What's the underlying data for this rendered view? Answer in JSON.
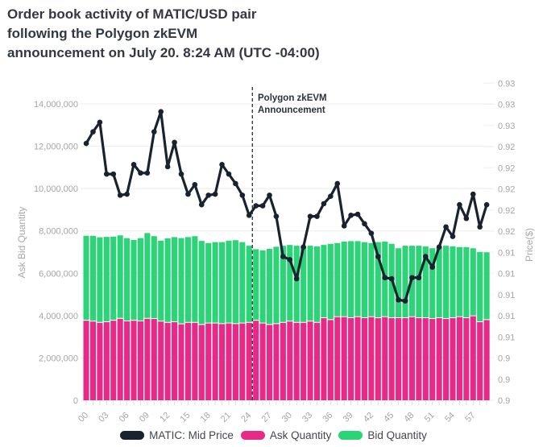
{
  "title": {
    "lines": [
      "Order book activity of MATIC/USD pair",
      "following the Polygon zkEVM",
      "announcement on July 20. 8:24 AM (UTC -04:00)"
    ]
  },
  "chart_data": {
    "type": "stacked-bar+line",
    "categories": [
      "00",
      "01",
      "02",
      "03",
      "04",
      "05",
      "06",
      "07",
      "08",
      "09",
      "10",
      "11",
      "12",
      "13",
      "14",
      "15",
      "16",
      "17",
      "18",
      "19",
      "20",
      "21",
      "22",
      "23",
      "24",
      "25",
      "26",
      "27",
      "28",
      "29",
      "30",
      "31",
      "32",
      "33",
      "34",
      "35",
      "36",
      "37",
      "38",
      "39",
      "40",
      "41",
      "42",
      "43",
      "44",
      "45",
      "46",
      "47",
      "48",
      "49",
      "50",
      "51",
      "52",
      "53",
      "54",
      "55",
      "56",
      "57",
      "58",
      "59"
    ],
    "x_tick_labels_every": 3,
    "x_tick_labels_shown": [
      "00",
      "03",
      "06",
      "09",
      "12",
      "15",
      "18",
      "21",
      "24",
      "27",
      "30",
      "33",
      "36",
      "39",
      "42",
      "45",
      "48",
      "51",
      "54",
      "57"
    ],
    "left_axis": {
      "title": "Ask Bid Quantity",
      "min": 0,
      "max": 14000000,
      "tick_step": 2000000
    },
    "right_axis": {
      "title": "Price($)",
      "min": 0.9,
      "max": 0.93,
      "tick_step": 0.002,
      "label_decimals": 2
    },
    "grid": true,
    "legend_position": "bottom",
    "series": [
      {
        "name": "Ask Quantity",
        "type": "bar",
        "stack": "orderbook",
        "axis": "left",
        "color": "#e72a88",
        "values_millions": [
          3.76,
          3.72,
          3.66,
          3.69,
          3.76,
          3.85,
          3.73,
          3.76,
          3.73,
          3.85,
          3.84,
          3.72,
          3.66,
          3.69,
          3.59,
          3.66,
          3.66,
          3.56,
          3.63,
          3.63,
          3.6,
          3.63,
          3.6,
          3.63,
          3.66,
          3.76,
          3.63,
          3.56,
          3.6,
          3.66,
          3.72,
          3.66,
          3.66,
          3.72,
          3.66,
          3.88,
          3.79,
          3.93,
          3.93,
          3.88,
          3.93,
          3.88,
          3.93,
          3.88,
          3.93,
          3.88,
          3.88,
          3.88,
          3.93,
          3.88,
          3.88,
          3.84,
          3.88,
          3.84,
          3.88,
          3.93,
          3.88,
          3.97,
          3.69,
          3.79
        ]
      },
      {
        "name": "Bid Quantity",
        "type": "bar",
        "stack": "orderbook",
        "axis": "left",
        "color": "#2bd476",
        "values_millions": [
          4.01,
          4.05,
          4.04,
          4.03,
          3.97,
          3.94,
          3.93,
          3.81,
          3.93,
          4.05,
          3.91,
          3.82,
          3.99,
          4.02,
          4.07,
          4.05,
          4.09,
          3.97,
          3.8,
          3.84,
          3.87,
          3.91,
          3.96,
          3.84,
          3.64,
          3.38,
          3.45,
          3.59,
          3.65,
          3.64,
          3.62,
          3.64,
          3.61,
          3.58,
          3.61,
          3.46,
          3.6,
          3.5,
          3.57,
          3.64,
          3.59,
          3.59,
          3.5,
          3.59,
          3.57,
          3.51,
          3.3,
          3.42,
          3.37,
          3.42,
          3.39,
          3.34,
          3.36,
          3.46,
          3.39,
          3.31,
          3.36,
          3.21,
          3.32,
          3.2
        ]
      },
      {
        "name": "MATIC: Mid Price",
        "type": "line",
        "axis": "right",
        "color": "#19222f",
        "values": [
          0.9243,
          0.9254,
          0.9263,
          0.9214,
          0.9214,
          0.9194,
          0.9195,
          0.9223,
          0.9215,
          0.9215,
          0.9254,
          0.9273,
          0.9221,
          0.9244,
          0.9214,
          0.9195,
          0.9204,
          0.9185,
          0.9194,
          0.9195,
          0.9223,
          0.9214,
          0.9205,
          0.9194,
          0.9175,
          0.9184,
          0.9184,
          0.9194,
          0.9174,
          0.9136,
          0.9133,
          0.9115,
          0.9145,
          0.9174,
          0.9174,
          0.9186,
          0.9193,
          0.9205,
          0.9165,
          0.9175,
          0.9176,
          0.9167,
          0.9158,
          0.9136,
          0.9116,
          0.9115,
          0.9095,
          0.9094,
          0.9116,
          0.9116,
          0.9136,
          0.9126,
          0.9145,
          0.9164,
          0.9155,
          0.9185,
          0.9172,
          0.9195,
          0.9164,
          0.9185
        ]
      }
    ],
    "annotation": {
      "text_lines": [
        "Polygon zkEVM",
        "Announcement"
      ],
      "x_category": "24",
      "line_style": "dashed"
    }
  }
}
